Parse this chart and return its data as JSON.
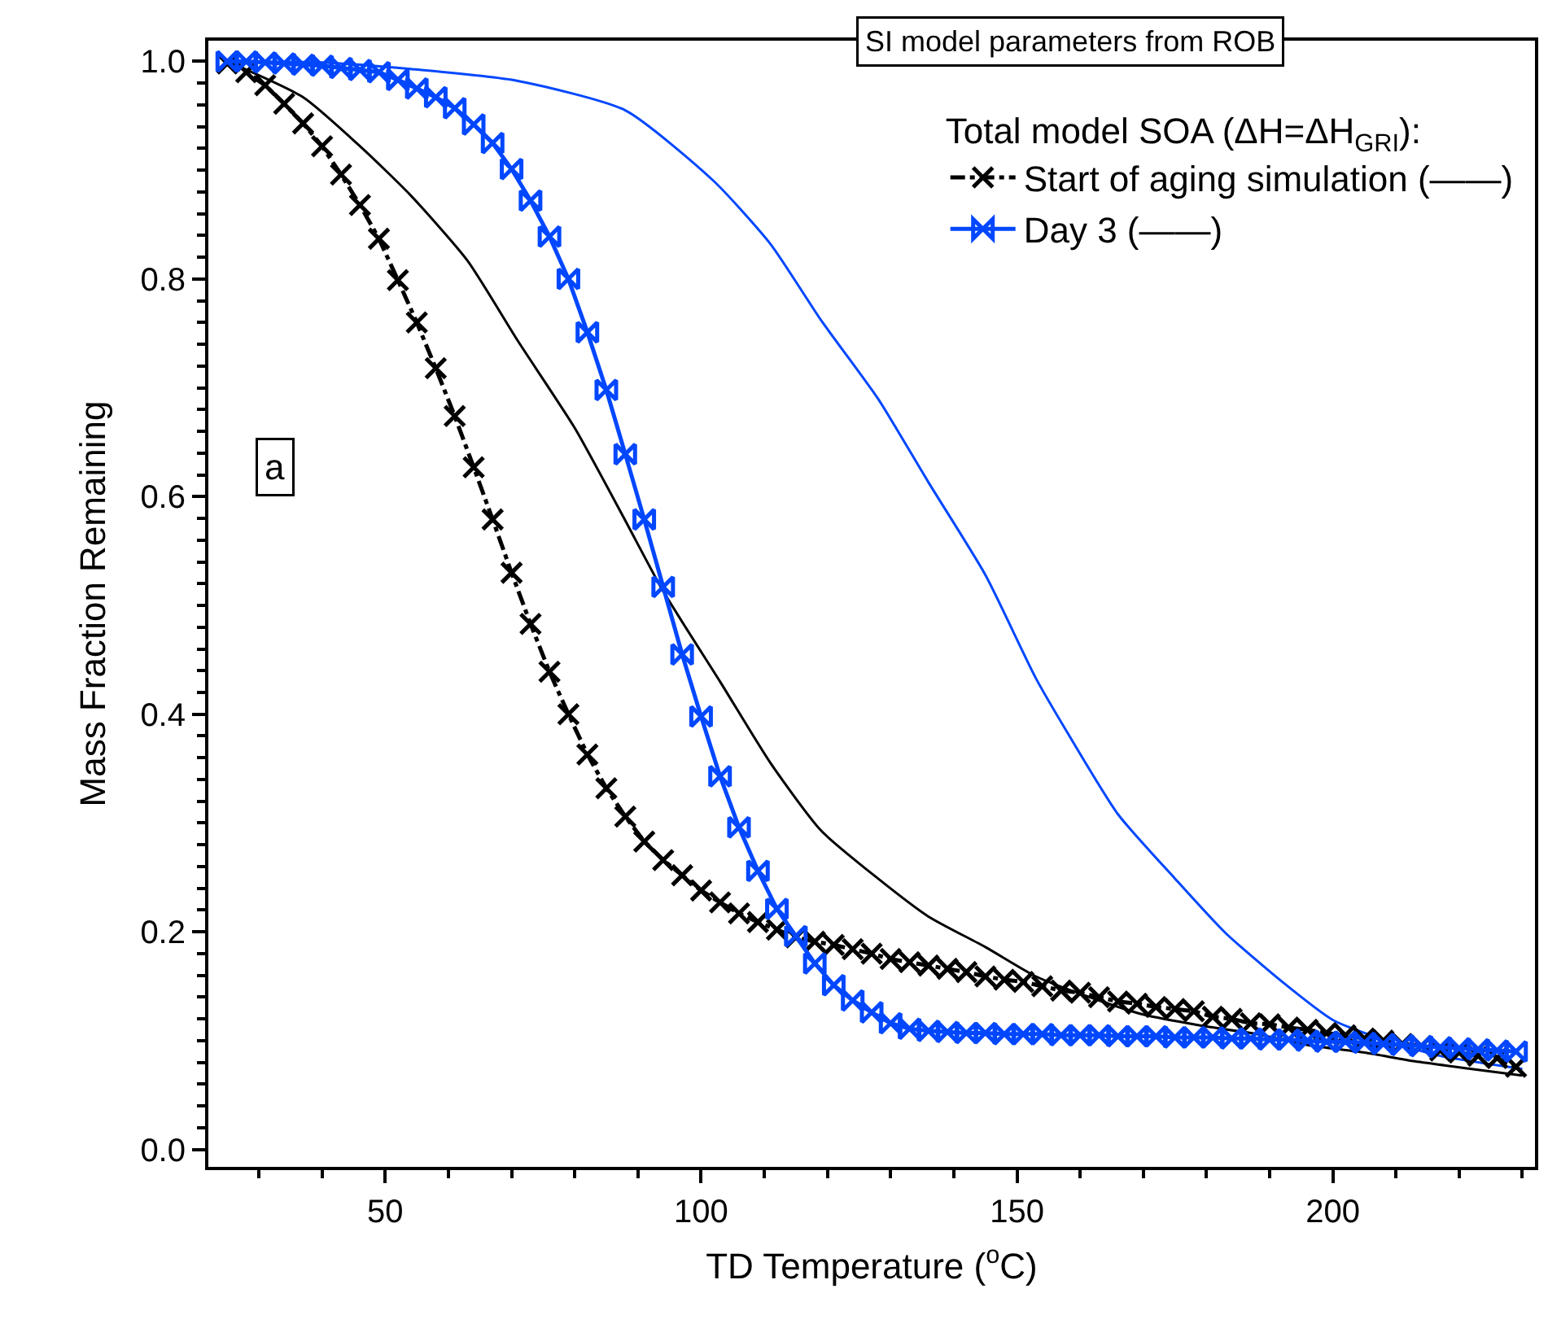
{
  "chart_data": {
    "type": "line",
    "xlabel": "TD Temperature ($^{o}$C)",
    "ylabel": "Mass Fraction Remaining",
    "legend_title": "Total model SOA (ΔH=ΔH$_{GRI}$):",
    "annotations": [
      "SI model parameters from ROB",
      "a"
    ],
    "xlim": [
      22,
      232
    ],
    "xticks": [
      50,
      100,
      150,
      200
    ],
    "ylim": [
      -0.016,
      1.019
    ],
    "yticks": [
      {
        "value": 0,
        "label": "0.0"
      },
      0.2,
      0.4,
      0.6,
      0.8,
      {
        "value": 1,
        "label": "1.0"
      }
    ],
    "grid": false,
    "legend": "top right",
    "series": [
      {
        "name": "Start of aging simulation (——)",
        "color": "#000000",
        "marker": "cross",
        "line_style": "dashed",
        "x": [
          25,
          28,
          31,
          34,
          37,
          40,
          43,
          46,
          49,
          52,
          55,
          58,
          61,
          64,
          67,
          70,
          73,
          76,
          79,
          82,
          85,
          88,
          91,
          94,
          97,
          100,
          103,
          106,
          109,
          112,
          115,
          118,
          121,
          124,
          127,
          130,
          133,
          136,
          139,
          142,
          145,
          148,
          151,
          154,
          157,
          160,
          163,
          166,
          169,
          172,
          175,
          178,
          181,
          184,
          187,
          190,
          193,
          196,
          199,
          202,
          205,
          208,
          211,
          214,
          217,
          220,
          223,
          226,
          229
        ],
        "values": [
          0.998,
          0.99,
          0.978,
          0.961,
          0.943,
          0.922,
          0.896,
          0.868,
          0.837,
          0.799,
          0.76,
          0.718,
          0.674,
          0.627,
          0.579,
          0.53,
          0.483,
          0.439,
          0.4,
          0.363,
          0.332,
          0.306,
          0.283,
          0.266,
          0.252,
          0.238,
          0.227,
          0.217,
          0.209,
          0.202,
          0.195,
          0.191,
          0.188,
          0.184,
          0.18,
          0.175,
          0.172,
          0.169,
          0.166,
          0.163,
          0.159,
          0.156,
          0.154,
          0.15,
          0.146,
          0.144,
          0.14,
          0.136,
          0.134,
          0.131,
          0.129,
          0.127,
          0.122,
          0.12,
          0.116,
          0.115,
          0.112,
          0.11,
          0.107,
          0.105,
          0.102,
          0.1,
          0.097,
          0.095,
          0.091,
          0.089,
          0.086,
          0.084,
          0.076
        ]
      },
      {
        "name": "Day 3 (——)",
        "color": "#0047ff",
        "marker": "diamond",
        "line_style": "solid",
        "x": [
          25,
          28,
          31,
          34,
          37,
          40,
          43,
          46,
          49,
          52,
          55,
          58,
          61,
          64,
          67,
          70,
          73,
          76,
          79,
          82,
          85,
          88,
          91,
          94,
          97,
          100,
          103,
          106,
          109,
          112,
          115,
          118,
          121,
          124,
          127,
          130,
          133,
          136,
          139,
          142,
          145,
          148,
          151,
          154,
          157,
          160,
          163,
          166,
          169,
          172,
          175,
          178,
          181,
          184,
          187,
          190,
          193,
          196,
          199,
          202,
          205,
          208,
          211,
          214,
          217,
          220,
          223,
          226,
          229
        ],
        "values": [
          1.0,
          1.0,
          0.999,
          0.998,
          0.997,
          0.996,
          0.994,
          0.992,
          0.99,
          0.983,
          0.975,
          0.967,
          0.957,
          0.942,
          0.925,
          0.901,
          0.872,
          0.839,
          0.8,
          0.751,
          0.698,
          0.639,
          0.579,
          0.517,
          0.455,
          0.398,
          0.343,
          0.296,
          0.256,
          0.221,
          0.196,
          0.171,
          0.151,
          0.137,
          0.126,
          0.116,
          0.111,
          0.109,
          0.108,
          0.107,
          0.107,
          0.106,
          0.106,
          0.106,
          0.105,
          0.105,
          0.105,
          0.104,
          0.104,
          0.104,
          0.103,
          0.103,
          0.103,
          0.102,
          0.102,
          0.101,
          0.101,
          0.1,
          0.099,
          0.099,
          0.098,
          0.097,
          0.096,
          0.095,
          0.094,
          0.093,
          0.092,
          0.091,
          0.09
        ]
      },
      {
        "color": "#000000",
        "marker": "none",
        "line_style": "solid",
        "x": [
          25,
          37,
          46,
          54,
          63,
          71,
          80,
          88,
          94,
          103,
          111,
          119,
          128,
          136,
          145,
          153,
          162,
          170,
          179,
          188,
          196,
          205,
          213,
          222,
          230
        ],
        "values": [
          1.0,
          0.967,
          0.922,
          0.877,
          0.817,
          0.743,
          0.663,
          0.578,
          0.513,
          0.43,
          0.355,
          0.293,
          0.249,
          0.214,
          0.186,
          0.159,
          0.139,
          0.124,
          0.114,
          0.106,
          0.096,
          0.089,
          0.081,
          0.074,
          0.068
        ]
      },
      {
        "color": "#0047ff",
        "marker": "none",
        "line_style": "solid",
        "x": [
          25,
          40,
          54,
          71,
          88,
          102,
          111,
          119,
          128,
          136,
          145,
          153,
          158,
          166,
          175,
          183,
          192,
          200,
          209,
          217,
          230
        ],
        "values": [
          1.0,
          0.999,
          0.993,
          0.982,
          0.955,
          0.89,
          0.832,
          0.762,
          0.69,
          0.613,
          0.528,
          0.433,
          0.383,
          0.308,
          0.249,
          0.199,
          0.154,
          0.119,
          0.099,
          0.086,
          0.074
        ]
      }
    ]
  }
}
